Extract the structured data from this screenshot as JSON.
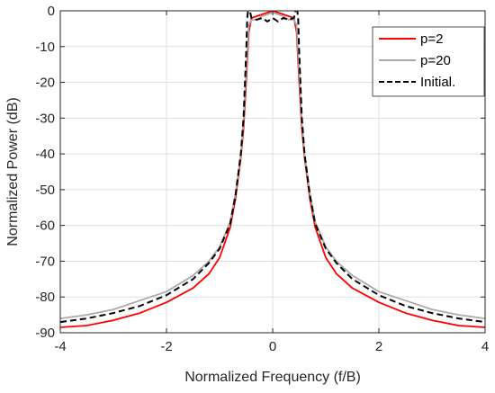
{
  "chart_data": {
    "type": "line",
    "title": "",
    "xlabel": "Normalized Frequency (f/B)",
    "ylabel": "Normalized Power (dB)",
    "xlim": [
      -4,
      4
    ],
    "ylim": [
      -90,
      0
    ],
    "xticks": [
      -4,
      -2,
      0,
      2,
      4
    ],
    "yticks": [
      0,
      -10,
      -20,
      -30,
      -40,
      -50,
      -60,
      -70,
      -80,
      -90
    ],
    "xtick_labels": [
      "-4",
      "-2",
      "0",
      "2",
      "4"
    ],
    "ytick_labels": [
      "0",
      "-10",
      "-20",
      "-30",
      "-40",
      "-50",
      "-60",
      "-70",
      "-80",
      "-90"
    ],
    "grid": true,
    "legend_position": "top-right",
    "series": [
      {
        "name": "p=2",
        "color": "#ff0000",
        "style": "solid",
        "x": [
          -4,
          -3.5,
          -3,
          -2.5,
          -2,
          -1.5,
          -1.2,
          -1,
          -0.8,
          -0.7,
          -0.6,
          -0.55,
          -0.5,
          -0.45,
          -0.4,
          -0.3,
          -0.2,
          -0.1,
          0,
          0.1,
          0.2,
          0.3,
          0.4,
          0.45,
          0.5,
          0.55,
          0.6,
          0.7,
          0.8,
          1,
          1.2,
          1.5,
          2,
          2.5,
          3,
          3.5,
          4
        ],
        "y": [
          -88.5,
          -88.0,
          -86.5,
          -84.5,
          -81.5,
          -77.5,
          -73.5,
          -69.0,
          -60.5,
          -52.5,
          -41.0,
          -33.0,
          -20.0,
          -6.0,
          -2.0,
          -1.5,
          -1.0,
          -0.5,
          0,
          -0.5,
          -1.0,
          -1.5,
          -2.0,
          -6.0,
          -20.0,
          -33.0,
          -41.0,
          -52.5,
          -60.5,
          -69.0,
          -73.5,
          -77.5,
          -81.5,
          -84.5,
          -86.5,
          -88.0,
          -88.5
        ]
      },
      {
        "name": "p=20",
        "color": "#aaaaaa",
        "style": "solid",
        "x": [
          -4,
          -3.5,
          -3,
          -2.5,
          -2,
          -1.5,
          -1.2,
          -1,
          -0.8,
          -0.7,
          -0.6,
          -0.55,
          -0.5,
          -0.45,
          -0.4,
          -0.3,
          -0.2,
          -0.1,
          0,
          0.1,
          0.2,
          0.3,
          0.4,
          0.45,
          0.5,
          0.55,
          0.6,
          0.7,
          0.8,
          1,
          1.2,
          1.5,
          2,
          2.5,
          3,
          3.5,
          4
        ],
        "y": [
          -86.0,
          -85.0,
          -83.5,
          -81.0,
          -78.5,
          -74.0,
          -70.0,
          -66.0,
          -59.0,
          -51.0,
          -40.0,
          -31.0,
          -17.0,
          -4.0,
          -2.5,
          -2.5,
          -1.5,
          -1.0,
          -0.5,
          -1.0,
          -1.5,
          -2.5,
          -2.5,
          -4.0,
          -17.0,
          -31.0,
          -40.0,
          -51.0,
          -59.0,
          -66.0,
          -70.0,
          -74.0,
          -78.5,
          -81.0,
          -83.5,
          -85.0,
          -86.0
        ]
      },
      {
        "name": "Initial.",
        "color": "#000000",
        "style": "dashed",
        "x": [
          -4,
          -3.5,
          -3,
          -2.5,
          -2,
          -1.5,
          -1.2,
          -1,
          -0.8,
          -0.7,
          -0.6,
          -0.55,
          -0.5,
          -0.48,
          -0.45,
          -0.4,
          -0.3,
          -0.2,
          -0.1,
          0,
          0.1,
          0.2,
          0.3,
          0.4,
          0.45,
          0.48,
          0.5,
          0.55,
          0.6,
          0.7,
          0.8,
          1,
          1.2,
          1.5,
          2,
          2.5,
          3,
          3.5,
          4
        ],
        "y": [
          -87.0,
          -86.0,
          -84.5,
          -82.5,
          -79.5,
          -75.0,
          -70.5,
          -66.5,
          -59.5,
          -51.5,
          -40.0,
          -30.0,
          -12.0,
          -2.0,
          1.5,
          -2.0,
          -2.5,
          -2.0,
          -3.0,
          -2.0,
          -3.0,
          -2.0,
          -2.5,
          -2.0,
          1.5,
          -2.0,
          -12.0,
          -30.0,
          -40.0,
          -51.5,
          -59.5,
          -66.5,
          -70.5,
          -75.0,
          -79.5,
          -82.5,
          -84.5,
          -86.0,
          -87.0
        ]
      }
    ]
  }
}
